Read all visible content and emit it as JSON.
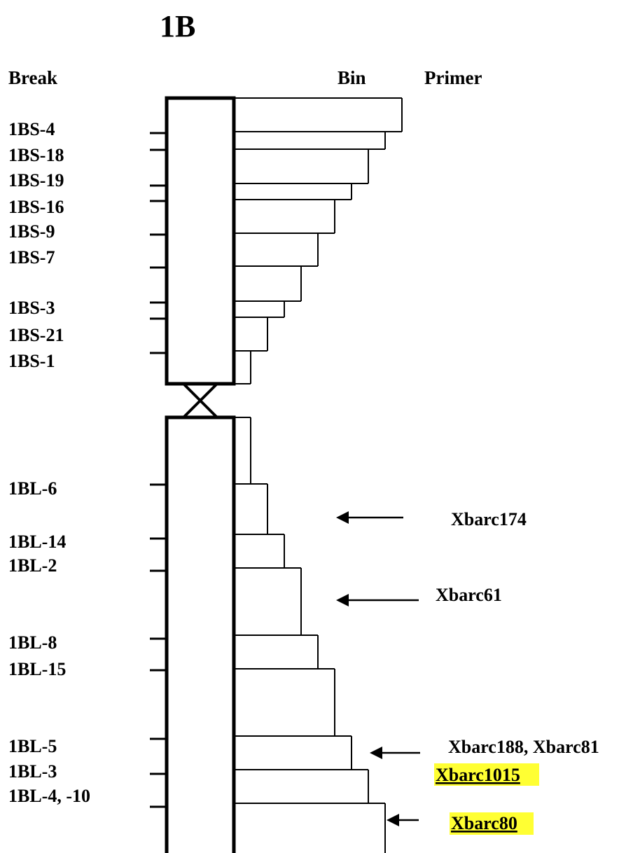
{
  "title": "1B",
  "headers": {
    "break": "Break",
    "bin": "Bin",
    "primer": "Primer"
  },
  "break_labels": [
    {
      "text": "1BS-4"
    },
    {
      "text": "1BS-18"
    },
    {
      "text": "1BS-19"
    },
    {
      "text": "1BS-16"
    },
    {
      "text": "1BS-9"
    },
    {
      "text": "1BS-7"
    },
    {
      "text": "1BS-3"
    },
    {
      "text": "1BS-21"
    },
    {
      "text": "1BS-1"
    },
    {
      "text": "1BL-6"
    },
    {
      "text": "1BL-14"
    },
    {
      "text": "1BL-2"
    },
    {
      "text": "1BL-8"
    },
    {
      "text": "1BL-15"
    },
    {
      "text": "1BL-5"
    },
    {
      "text": "1BL-3"
    },
    {
      "text": "1BL-4, -10"
    }
  ],
  "primers": [
    {
      "text": "Xbarc174",
      "highlight": false
    },
    {
      "text": "Xbarc61",
      "highlight": false
    },
    {
      "text": "Xbarc188, Xbarc81",
      "highlight": false
    },
    {
      "text": "Xbarc1015",
      "highlight": true
    },
    {
      "text": "Xbarc80",
      "highlight": true
    }
  ],
  "colors": {
    "line": "#000000",
    "highlight": "#ffff33",
    "background": "#ffffff"
  }
}
